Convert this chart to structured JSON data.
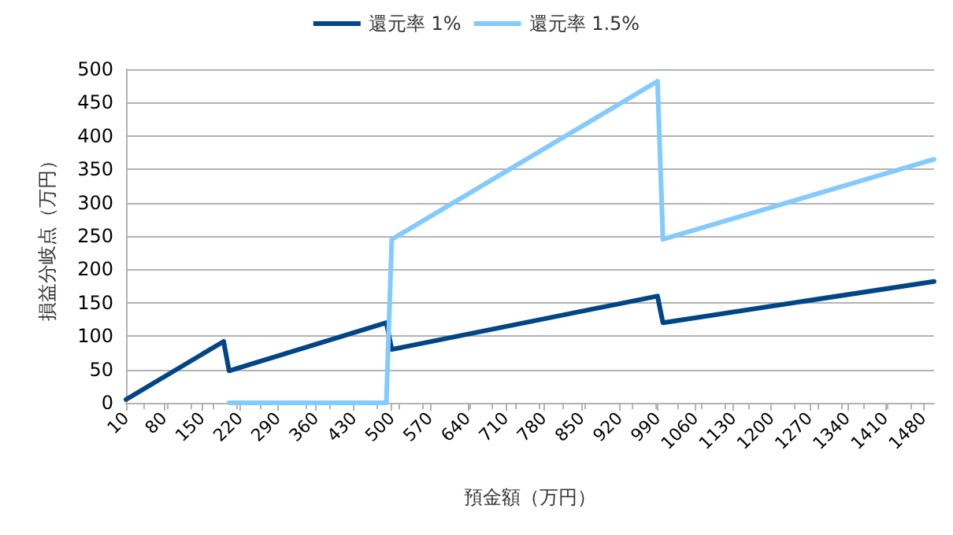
{
  "chart_data": {
    "type": "line",
    "xlabel": "預金額（万円）",
    "ylabel": "損益分岐点（万円）",
    "xlim": [
      10,
      1500
    ],
    "xticks": [
      10,
      80,
      150,
      220,
      290,
      360,
      430,
      500,
      570,
      640,
      710,
      780,
      850,
      920,
      990,
      1060,
      1130,
      1200,
      1270,
      1340,
      1410,
      1480
    ],
    "ylim": [
      0,
      500
    ],
    "yticks": [
      0,
      50,
      100,
      150,
      200,
      250,
      300,
      350,
      400,
      450,
      500
    ],
    "grid": "y",
    "legend": "top",
    "marker": "none",
    "line_style": "solid",
    "series": [
      {
        "name": "還元率 1%",
        "color": "#004586",
        "x": [
          10,
          190,
          200,
          490,
          500,
          990,
          1000,
          1500
        ],
        "values": [
          5,
          92,
          48,
          120,
          80,
          160,
          120,
          182
        ]
      },
      {
        "name": "還元率 1.5%",
        "color": "#83caff",
        "x": [
          200,
          490,
          500,
          990,
          1000,
          1500
        ],
        "values": [
          0,
          0,
          245,
          482,
          245,
          365
        ]
      }
    ]
  }
}
